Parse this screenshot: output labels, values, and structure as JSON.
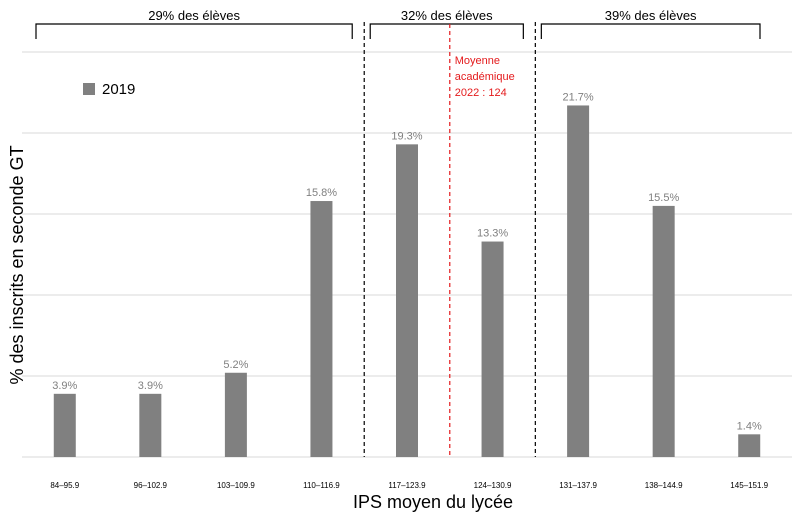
{
  "chart_data": {
    "type": "bar",
    "categories": [
      "84–95.9",
      "96–102.9",
      "103–109.9",
      "110–116.9",
      "117–123.9",
      "124–130.9",
      "131–137.9",
      "138–144.9",
      "145–151.9"
    ],
    "series": [
      {
        "name": "2019",
        "values": [
          3.9,
          3.9,
          5.2,
          15.8,
          19.3,
          13.3,
          21.7,
          15.5,
          1.4
        ]
      }
    ],
    "value_labels": [
      "3.9%",
      "3.9%",
      "5.2%",
      "15.8%",
      "19.3%",
      "13.3%",
      "21.7%",
      "15.5%",
      "1.4%"
    ],
    "xlabel": "IPS moyen du lycée",
    "ylabel": "% des inscrits en seconde GT",
    "ylim": [
      0,
      25
    ],
    "grid": true,
    "legend_position": "top-left",
    "group_brackets": [
      {
        "label": "29% des élèves",
        "from_category": 0,
        "to_category": 3
      },
      {
        "label": "32% des élèves",
        "from_category": 4,
        "to_category": 5
      },
      {
        "label": "39% des élèves",
        "from_category": 6,
        "to_category": 8
      }
    ],
    "reference_line": {
      "label_line1": "Moyenne",
      "label_line2": "académique",
      "label_line3": "2022 : 124",
      "x_value": 124
    },
    "colors": {
      "bar": "#808080",
      "grid": "#d9d9d9",
      "reference": "#e41a1c",
      "divider": "#000000",
      "value_label": "#808080"
    }
  }
}
